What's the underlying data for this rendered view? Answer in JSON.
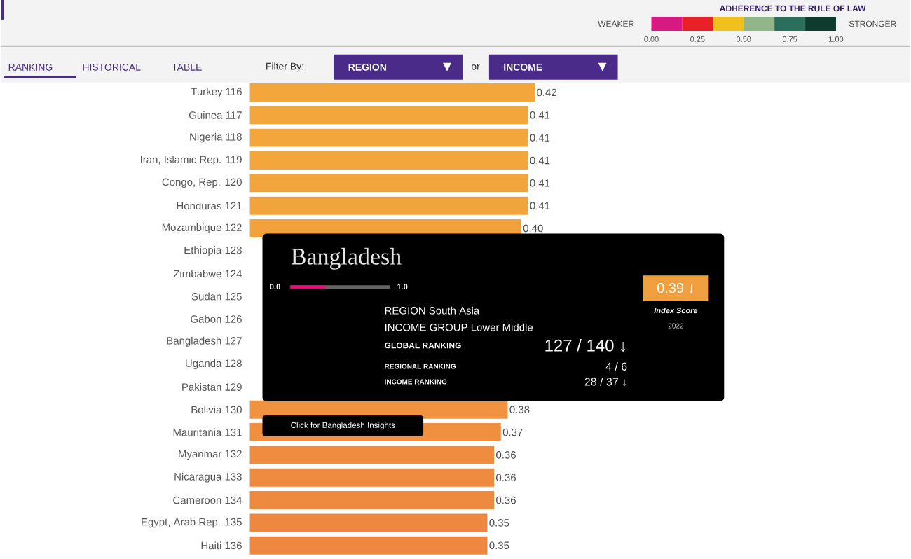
{
  "chart_data": {
    "type": "bar",
    "orientation": "horizontal",
    "categories": [
      "Turkey 116",
      "Guinea 117",
      "Nigeria 118",
      "Iran, Islamic Rep. 119",
      "Congo, Rep. 120",
      "Honduras 121",
      "Mozambique 122",
      "Ethiopia 123",
      "Zimbabwe 124",
      "Sudan 125",
      "Gabon 126",
      "Bangladesh 127",
      "Uganda 128",
      "Pakistan 129",
      "Bolivia 130",
      "Mauritania 131",
      "Myanmar 132",
      "Nicaragua 133",
      "Cameroon 134",
      "Egypt, Arab Rep. 135",
      "Haiti 136"
    ],
    "values": [
      0.42,
      0.41,
      0.41,
      0.41,
      0.41,
      0.41,
      0.4,
      null,
      null,
      null,
      null,
      null,
      null,
      null,
      0.38,
      0.37,
      0.36,
      0.36,
      0.36,
      0.35,
      0.35
    ],
    "value_labels": [
      "0.42",
      "0.41",
      "0.41",
      "0.41",
      "0.41",
      "0.41",
      "0.40",
      null,
      null,
      null,
      null,
      null,
      null,
      null,
      "0.38",
      "0.37",
      "0.36",
      "0.36",
      "0.36",
      "0.35",
      "0.35"
    ],
    "colors": [
      "#f2a63c",
      "#f2a63c",
      "#f2a63c",
      "#f2a63c",
      "#f2a53c",
      "#f2a43c",
      "#f2a23d",
      "#f2a03d",
      "#f29e3d",
      "#f29c3e",
      "#f29a3e",
      "#f2983e",
      "#f1963f",
      "#f1943f",
      "#f0923f",
      "#f08f40",
      "#ef8c40",
      "#ef8b40",
      "#ee8940",
      "#ee8840",
      "#ee8740"
    ],
    "annotations": [
      "ADHERENCE TO THE RULE OF LAW",
      "WEAKER",
      "STRONGER",
      "0.00",
      "0.25",
      "0.50",
      "0.75",
      "1.00",
      "RANKING",
      "HISTORICAL",
      "TABLE",
      "Filter By:",
      "REGION",
      "or",
      "INCOME",
      "Bangladesh",
      "0.0",
      "1.0",
      "REGION South Asia",
      "INCOME GROUP Lower Middle",
      "GLOBAL RANKING",
      "127 / 140 ↓",
      "REGIONAL RANKING",
      "4 / 6",
      "INCOME RANKING",
      "28 / 37 ↓",
      "0.39 ↓",
      "Index Score",
      "2022",
      "Click for Bangladesh Insights"
    ]
  }
}
